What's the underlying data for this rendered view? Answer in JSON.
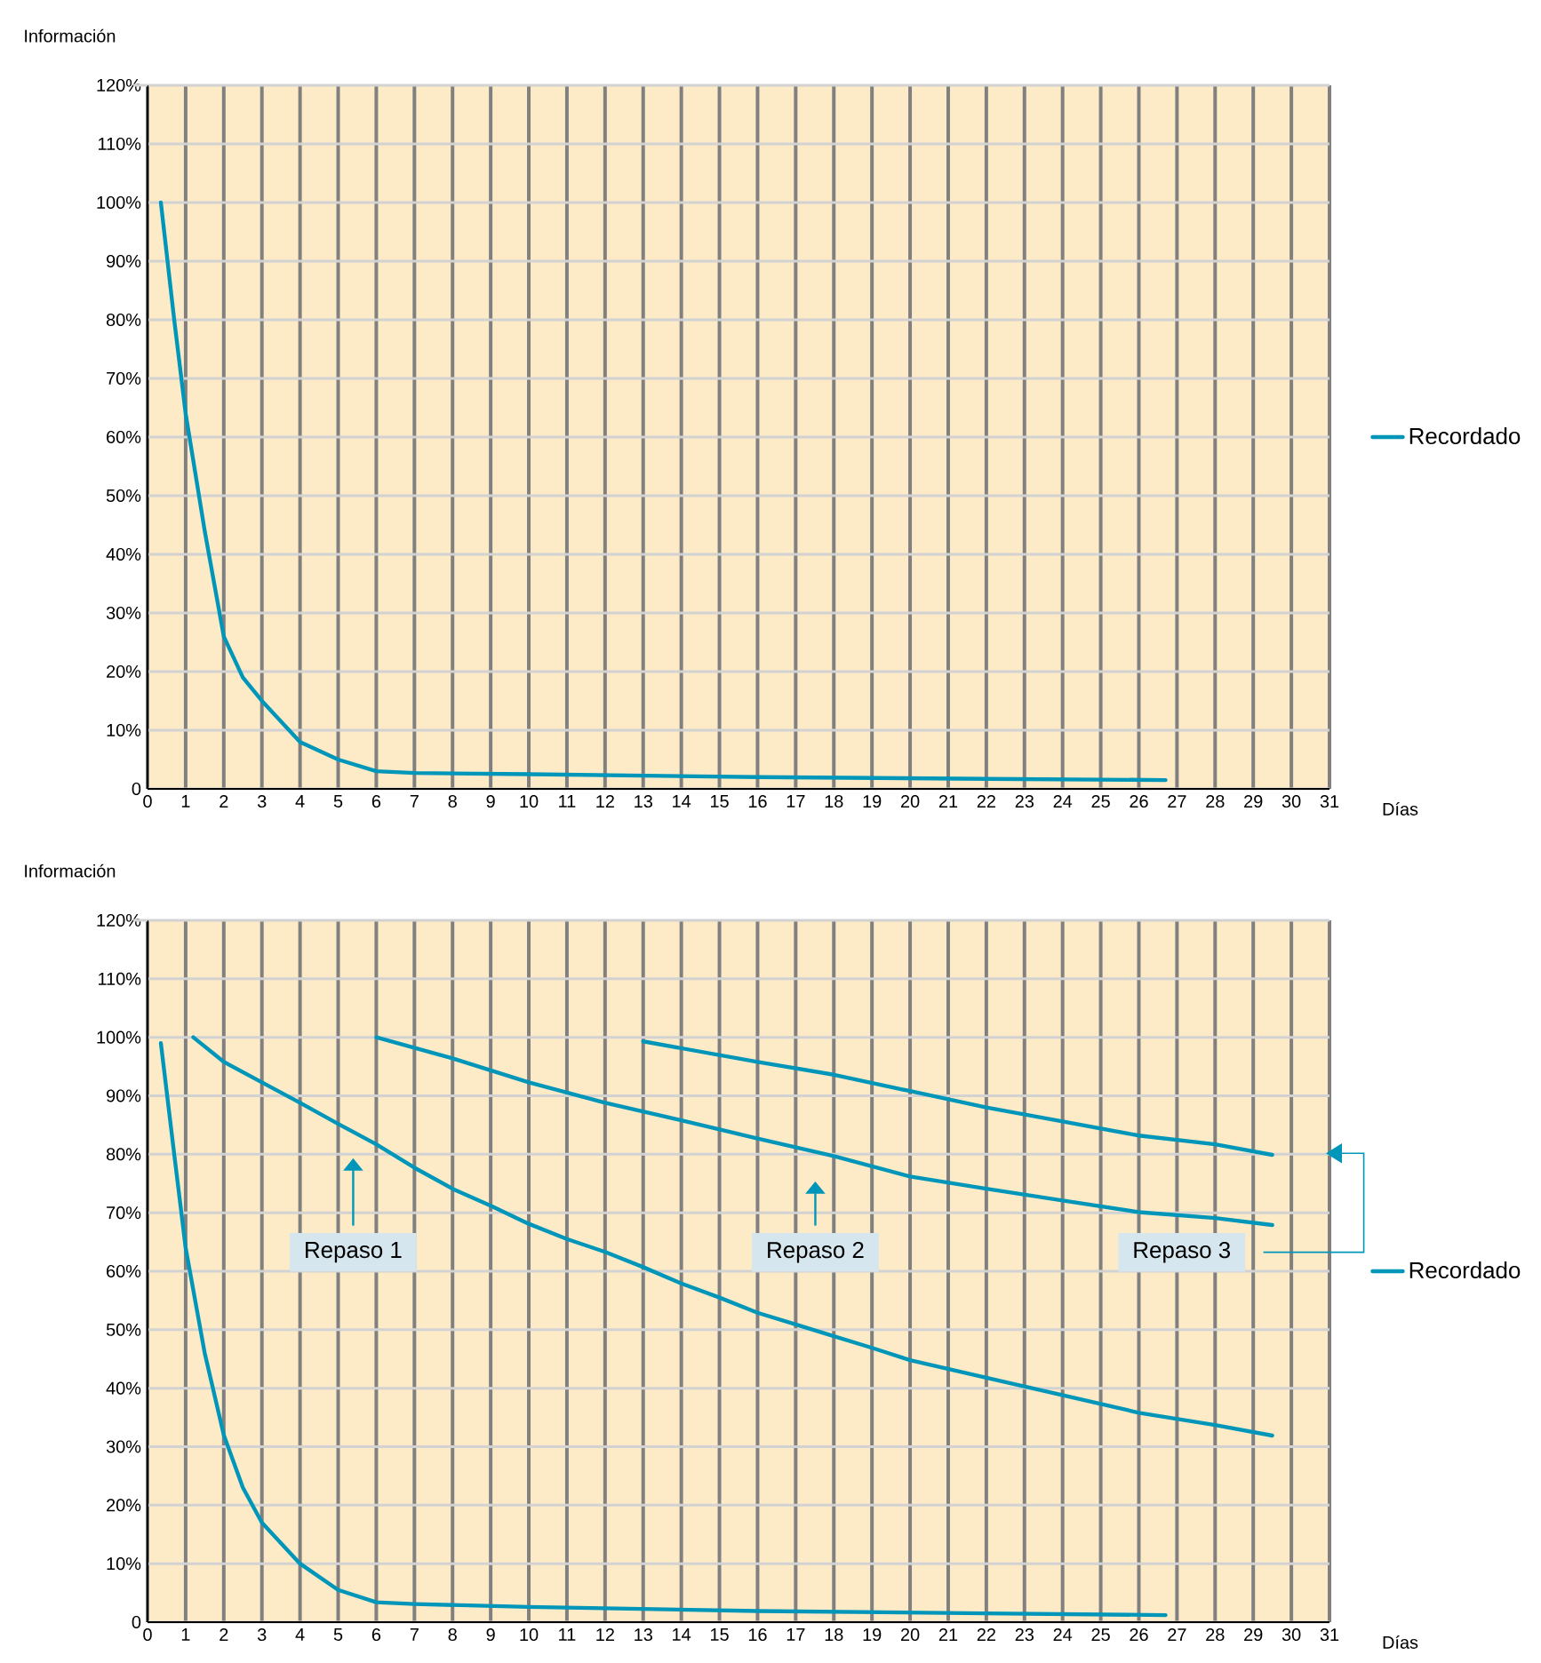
{
  "chart_data": [
    {
      "type": "line",
      "ylabel": "Información",
      "xlabel": "Días",
      "xlim": [
        0,
        31
      ],
      "xticks": [
        0,
        1,
        2,
        3,
        4,
        5,
        6,
        7,
        8,
        9,
        10,
        11,
        12,
        13,
        14,
        15,
        16,
        17,
        18,
        19,
        20,
        21,
        22,
        23,
        24,
        25,
        26,
        27,
        28,
        29,
        30,
        31
      ],
      "ylim": [
        0,
        120
      ],
      "yticks": [
        0,
        {
          "value": 10,
          "label": "10%"
        },
        {
          "value": 20,
          "label": "20%"
        },
        {
          "value": 30,
          "label": "30%"
        },
        {
          "value": 40,
          "label": "40%"
        },
        {
          "value": 50,
          "label": "50%"
        },
        {
          "value": 60,
          "label": "60%"
        },
        {
          "value": 70,
          "label": "70%"
        },
        {
          "value": 80,
          "label": "80%"
        },
        {
          "value": 90,
          "label": "90%"
        },
        {
          "value": 100,
          "label": "100%"
        },
        {
          "value": 110,
          "label": "110%"
        },
        {
          "value": 120,
          "label": "120%"
        }
      ],
      "grid": true,
      "legend": "right",
      "series": [
        {
          "name": "Recordado",
          "color": "#0096b9",
          "x": [
            0.35,
            0.7,
            1,
            1.5,
            2,
            2.5,
            3,
            4,
            5,
            6,
            7,
            10,
            16,
            22,
            26.7
          ],
          "values": [
            100,
            80,
            64,
            44,
            26,
            19,
            15,
            8,
            5,
            3,
            2.7,
            2.5,
            2,
            1.7,
            1.5
          ]
        }
      ]
    },
    {
      "type": "line",
      "ylabel": "Información",
      "xlabel": "Días",
      "xlim": [
        0,
        31
      ],
      "xticks": [
        0,
        1,
        2,
        3,
        4,
        5,
        6,
        7,
        8,
        9,
        10,
        11,
        12,
        13,
        14,
        15,
        16,
        17,
        18,
        19,
        20,
        21,
        22,
        23,
        24,
        25,
        26,
        27,
        28,
        29,
        30,
        31
      ],
      "ylim": [
        0,
        120
      ],
      "yticks": [
        0,
        {
          "value": 10,
          "label": "10%"
        },
        {
          "value": 20,
          "label": "20%"
        },
        {
          "value": 30,
          "label": "30%"
        },
        {
          "value": 40,
          "label": "40%"
        },
        {
          "value": 50,
          "label": "50%"
        },
        {
          "value": 60,
          "label": "60%"
        },
        {
          "value": 70,
          "label": "70%"
        },
        {
          "value": 80,
          "label": "80%"
        },
        {
          "value": 90,
          "label": "90%"
        },
        {
          "value": 100,
          "label": "100%"
        },
        {
          "value": 110,
          "label": "110%"
        },
        {
          "value": 120,
          "label": "120%"
        }
      ],
      "grid": true,
      "legend": "right",
      "series": [
        {
          "name": "Recordado",
          "color": "#0096b9",
          "x": [
            0.35,
            0.7,
            1,
            1.5,
            2,
            2.5,
            3,
            4,
            5,
            6,
            7,
            10,
            16,
            22,
            26.7
          ],
          "values": [
            99,
            80,
            64,
            46,
            32,
            23,
            17,
            10,
            5.5,
            3.4,
            3.1,
            2.6,
            1.9,
            1.5,
            1.2
          ]
        },
        {
          "color": "#0096b9",
          "x": [
            1.2,
            2,
            3,
            4,
            5,
            6,
            7,
            8,
            9,
            10,
            11,
            12,
            13,
            14,
            15,
            16,
            17,
            18,
            19,
            20,
            22,
            24,
            26,
            28,
            29.5
          ],
          "values": [
            100,
            95.8,
            92.3,
            88.8,
            85.2,
            81.7,
            77.7,
            74.1,
            71.2,
            68.1,
            65.5,
            63.3,
            60.7,
            57.9,
            55.5,
            52.9,
            50.9,
            48.9,
            46.9,
            44.8,
            41.8,
            38.8,
            35.8,
            33.7,
            31.9
          ]
        },
        {
          "color": "#0096b9",
          "x": [
            6,
            8,
            10,
            12,
            14,
            16,
            18,
            20,
            22,
            24,
            26,
            28,
            29.5
          ],
          "values": [
            100,
            96.4,
            92.3,
            88.8,
            85.8,
            82.7,
            79.7,
            76.2,
            74.1,
            72.1,
            70.1,
            69.1,
            67.9
          ]
        },
        {
          "color": "#0096b9",
          "x": [
            13,
            16,
            18,
            20,
            22,
            24,
            26,
            28,
            29.5
          ],
          "values": [
            99.3,
            95.8,
            93.6,
            90.8,
            88,
            85.6,
            83.2,
            81.7,
            79.9
          ]
        }
      ],
      "annotations": [
        "Repaso 1",
        "Repaso 2",
        "Repaso 3"
      ]
    }
  ]
}
